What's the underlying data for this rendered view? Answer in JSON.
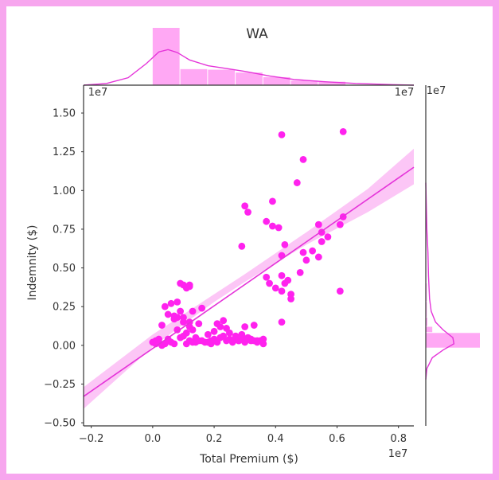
{
  "chart_data": {
    "type": "scatter",
    "title": "WA",
    "xlabel": "Total Premium ($)",
    "ylabel": "Indemnity ($)",
    "x_offset_label": "1e7",
    "y_offset_label": "1e7",
    "top_margin_offset_label": "1e7",
    "top_margin_offset_label_right": "1e7",
    "right_margin_offset_label": "1e7",
    "xlim": [
      -0.225,
      0.85
    ],
    "ylim": [
      -0.52,
      1.68
    ],
    "x_ticks": [
      -0.2,
      0.0,
      0.2,
      0.4,
      0.6,
      0.8
    ],
    "x_tick_labels": [
      "−0.2",
      "0.0",
      "0.2",
      "0.4",
      "0.6",
      "0.8"
    ],
    "y_ticks": [
      -0.5,
      -0.25,
      0.0,
      0.25,
      0.5,
      0.75,
      1.0,
      1.25,
      1.5
    ],
    "y_tick_labels": [
      "−0.50",
      "−0.25",
      "0.00",
      "0.25",
      "0.50",
      "0.75",
      "1.00",
      "1.25",
      "1.50"
    ],
    "grid": false,
    "colors": {
      "points": "#ff22ee",
      "line": "#e534d9",
      "band": "#fbb8f4",
      "hist": "#ff99f2",
      "kde": "#e534d9",
      "frame": "#f7a6ee"
    },
    "scatter": {
      "x": [
        0.06,
        0.08,
        0.04,
        0.09,
        0.1,
        0.05,
        0.07,
        0.12,
        0.15,
        0.03,
        0.08,
        0.11,
        0.1,
        0.14,
        0.18,
        0.2,
        0.22,
        0.21,
        0.23,
        0.13,
        0.16,
        0.24,
        0.25,
        0.27,
        0.29,
        0.3,
        0.31,
        0.32,
        0.33,
        0.34,
        0.25,
        0.27,
        0.28,
        0.26,
        0.29,
        0.2,
        0.19,
        0.17,
        0.22,
        0.23,
        0.35,
        0.36,
        0.02,
        0.01,
        0.03,
        0.04,
        0.0,
        0.01,
        0.05,
        0.06,
        0.07,
        0.02,
        0.09,
        0.12,
        0.14,
        0.16,
        0.11,
        0.13,
        0.15,
        0.18,
        0.19,
        0.21,
        0.24,
        0.26,
        0.28,
        0.3,
        0.32,
        0.34,
        0.36,
        0.31,
        0.12,
        0.11,
        0.1,
        0.09,
        0.08,
        0.07,
        0.1,
        0.12,
        0.13,
        0.3,
        0.33,
        0.37,
        0.38,
        0.4,
        0.42,
        0.42,
        0.43,
        0.44,
        0.45,
        0.45,
        0.48,
        0.5,
        0.52,
        0.55,
        0.55,
        0.57,
        0.61,
        0.62,
        0.43,
        0.42,
        0.49,
        0.39,
        0.41,
        0.37,
        0.31,
        0.3,
        0.47,
        0.29,
        0.39,
        0.42,
        0.12
      ],
      "y": [
        0.27,
        0.28,
        0.25,
        0.22,
        0.18,
        0.2,
        0.17,
        0.15,
        0.14,
        0.13,
        0.1,
        0.08,
        0.06,
        0.05,
        0.07,
        0.09,
        0.12,
        0.14,
        0.16,
        0.22,
        0.24,
        0.11,
        0.08,
        0.06,
        0.04,
        0.04,
        0.05,
        0.04,
        0.03,
        0.02,
        0.04,
        0.05,
        0.03,
        0.03,
        0.07,
        0.04,
        0.03,
        0.02,
        0.05,
        0.06,
        0.03,
        0.04,
        0.02,
        0.01,
        0.0,
        0.01,
        0.02,
        0.03,
        0.04,
        0.02,
        0.01,
        0.04,
        0.05,
        0.03,
        0.02,
        0.03,
        0.01,
        0.02,
        0.03,
        0.02,
        0.01,
        0.02,
        0.03,
        0.02,
        0.03,
        0.02,
        0.03,
        0.03,
        0.01,
        0.04,
        0.38,
        0.37,
        0.39,
        0.4,
        0.18,
        0.19,
        0.15,
        0.12,
        0.1,
        0.12,
        0.13,
        0.44,
        0.4,
        0.37,
        0.35,
        0.45,
        0.4,
        0.42,
        0.3,
        0.33,
        0.47,
        0.55,
        0.61,
        0.67,
        0.73,
        0.7,
        0.78,
        0.83,
        0.65,
        0.58,
        0.6,
        0.77,
        0.76,
        0.8,
        0.86,
        0.9,
        1.05,
        0.64,
        0.93,
        1.36,
        0.39
      ],
      "extra_x": [
        0.42,
        0.54,
        0.61,
        0.49,
        0.62,
        0.54
      ],
      "extra_y": [
        0.15,
        0.57,
        0.35,
        1.2,
        1.38,
        0.78
      ]
    },
    "regression": {
      "x": [
        -0.225,
        0.85
      ],
      "y": [
        -0.33,
        1.15
      ]
    },
    "regression_band": {
      "x": [
        -0.225,
        0.0,
        0.2,
        0.3,
        0.5,
        0.7,
        0.85
      ],
      "upper": [
        -0.27,
        0.07,
        0.33,
        0.46,
        0.73,
        1.01,
        1.27
      ],
      "lower": [
        -0.41,
        -0.01,
        0.28,
        0.41,
        0.65,
        0.86,
        1.04
      ]
    },
    "top_hist": {
      "bin_edges": [
        0.0,
        0.09,
        0.18,
        0.27,
        0.36,
        0.45,
        0.54,
        0.63
      ],
      "heights": [
        1.0,
        0.28,
        0.27,
        0.22,
        0.14,
        0.08,
        0.06
      ]
    },
    "top_kde": {
      "x": [
        -0.225,
        -0.15,
        -0.08,
        -0.02,
        0.02,
        0.05,
        0.08,
        0.12,
        0.18,
        0.24,
        0.3,
        0.38,
        0.46,
        0.56,
        0.66,
        0.78,
        0.85
      ],
      "y": [
        0.0,
        0.03,
        0.13,
        0.38,
        0.58,
        0.62,
        0.57,
        0.44,
        0.34,
        0.29,
        0.24,
        0.16,
        0.1,
        0.06,
        0.03,
        0.01,
        0.0
      ]
    },
    "right_hist": {
      "bin_edges": [
        -0.02,
        0.08,
        0.12,
        0.18,
        0.28,
        0.4,
        0.55,
        0.75,
        1.0,
        1.4
      ],
      "widths": [
        1.0,
        0.12,
        0.03,
        0.02,
        0.02,
        0.01,
        0.01,
        0.01,
        0.005
      ]
    },
    "right_kde": {
      "y": [
        -0.22,
        -0.15,
        -0.08,
        -0.03,
        0.01,
        0.05,
        0.1,
        0.15,
        0.22,
        0.3,
        0.45,
        0.6,
        0.75,
        0.9,
        1.05
      ],
      "x": [
        0.0,
        0.02,
        0.12,
        0.32,
        0.52,
        0.5,
        0.32,
        0.18,
        0.1,
        0.07,
        0.05,
        0.04,
        0.02,
        0.01,
        0.0
      ]
    }
  }
}
